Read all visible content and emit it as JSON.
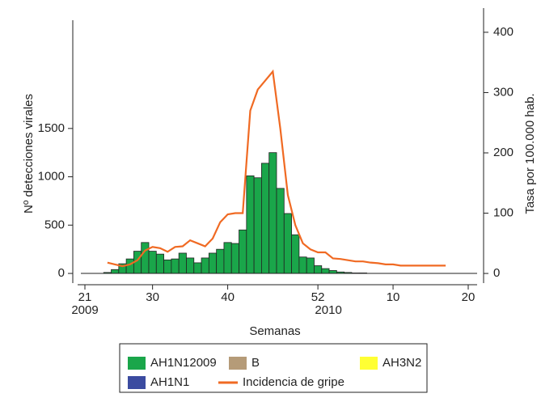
{
  "chart_data": {
    "type": "bar",
    "y_label": "Nº detecciones virales",
    "y2_label": "Tasa por 100.000 hab.",
    "x_label": "Semanas",
    "categories": [
      "21",
      null,
      null,
      null,
      null,
      null,
      null,
      null,
      null,
      "30",
      null,
      null,
      null,
      null,
      null,
      null,
      null,
      null,
      null,
      "40",
      null,
      null,
      null,
      null,
      null,
      null,
      null,
      null,
      null,
      null,
      null,
      "52",
      null,
      null,
      null,
      null,
      null,
      null,
      null,
      null,
      null,
      "10",
      null,
      null,
      null,
      null,
      null,
      null,
      null,
      null,
      null,
      "20"
    ],
    "category_years": [
      "2009",
      null,
      null,
      null,
      null,
      null,
      null,
      null,
      null,
      null,
      null,
      null,
      null,
      null,
      null,
      null,
      null,
      null,
      null,
      null,
      null,
      null,
      null,
      null,
      null,
      null,
      null,
      null,
      null,
      null,
      null,
      "2010",
      null,
      null,
      null,
      null,
      null,
      null,
      null,
      null,
      null,
      null,
      null,
      null,
      null,
      null,
      null,
      null,
      null,
      null,
      null,
      null
    ],
    "ylim": [
      -100,
      2620
    ],
    "yticks": [
      0,
      500,
      1000,
      1500
    ],
    "y2lim": [
      -16,
      420
    ],
    "y2ticks": [
      0,
      100,
      200,
      300,
      400
    ],
    "series": [
      {
        "name": "AH1N12009",
        "color": "#1aa64a",
        "values": [
          0,
          0,
          0,
          10,
          40,
          100,
          150,
          230,
          320,
          230,
          200,
          140,
          150,
          210,
          160,
          110,
          160,
          210,
          250,
          320,
          310,
          450,
          1010,
          990,
          1140,
          1250,
          880,
          620,
          400,
          170,
          160,
          80,
          50,
          30,
          15,
          10,
          5,
          5,
          0,
          0,
          0,
          0,
          0,
          0,
          0,
          0,
          0,
          0,
          0,
          0,
          0,
          0
        ]
      },
      {
        "name": "B",
        "color": "#b59b78",
        "values": [
          0,
          0,
          0,
          0,
          0,
          0,
          0,
          0,
          0,
          0,
          0,
          0,
          0,
          0,
          0,
          0,
          0,
          0,
          0,
          0,
          0,
          0,
          0,
          0,
          0,
          0,
          0,
          0,
          0,
          0,
          0,
          0,
          0,
          0,
          0,
          0,
          0,
          0,
          0,
          0,
          0,
          0,
          0,
          0,
          0,
          0,
          0,
          0,
          0,
          0,
          0,
          0
        ]
      },
      {
        "name": "AH3N2",
        "color": "#ffff33",
        "values": [
          0,
          0,
          0,
          0,
          0,
          0,
          0,
          0,
          0,
          0,
          0,
          0,
          0,
          0,
          0,
          0,
          0,
          0,
          0,
          0,
          0,
          0,
          0,
          0,
          0,
          0,
          0,
          0,
          0,
          0,
          0,
          0,
          0,
          0,
          0,
          0,
          0,
          0,
          0,
          0,
          0,
          0,
          0,
          0,
          0,
          0,
          0,
          0,
          0,
          0,
          0,
          0
        ]
      },
      {
        "name": "AH1N1",
        "color": "#3b4ba0",
        "values": [
          0,
          0,
          0,
          0,
          0,
          0,
          0,
          0,
          0,
          0,
          0,
          0,
          0,
          0,
          0,
          0,
          0,
          0,
          0,
          0,
          0,
          0,
          0,
          0,
          0,
          0,
          0,
          0,
          0,
          0,
          0,
          0,
          0,
          0,
          0,
          0,
          0,
          0,
          0,
          0,
          0,
          0,
          0,
          0,
          0,
          0,
          0,
          0,
          0,
          0,
          0,
          0
        ]
      },
      {
        "name": "Incidencia de gripe",
        "color": "#f06a23",
        "type": "line",
        "axis": "y2",
        "values": [
          null,
          null,
          null,
          18,
          15,
          12,
          15,
          22,
          38,
          44,
          42,
          36,
          44,
          45,
          55,
          50,
          45,
          58,
          85,
          98,
          100,
          100,
          270,
          305,
          320,
          335,
          240,
          130,
          80,
          50,
          40,
          35,
          35,
          25,
          24,
          22,
          20,
          20,
          18,
          17,
          15,
          15,
          13,
          13,
          13,
          13,
          13,
          13,
          13,
          null,
          null,
          null
        ]
      }
    ]
  }
}
